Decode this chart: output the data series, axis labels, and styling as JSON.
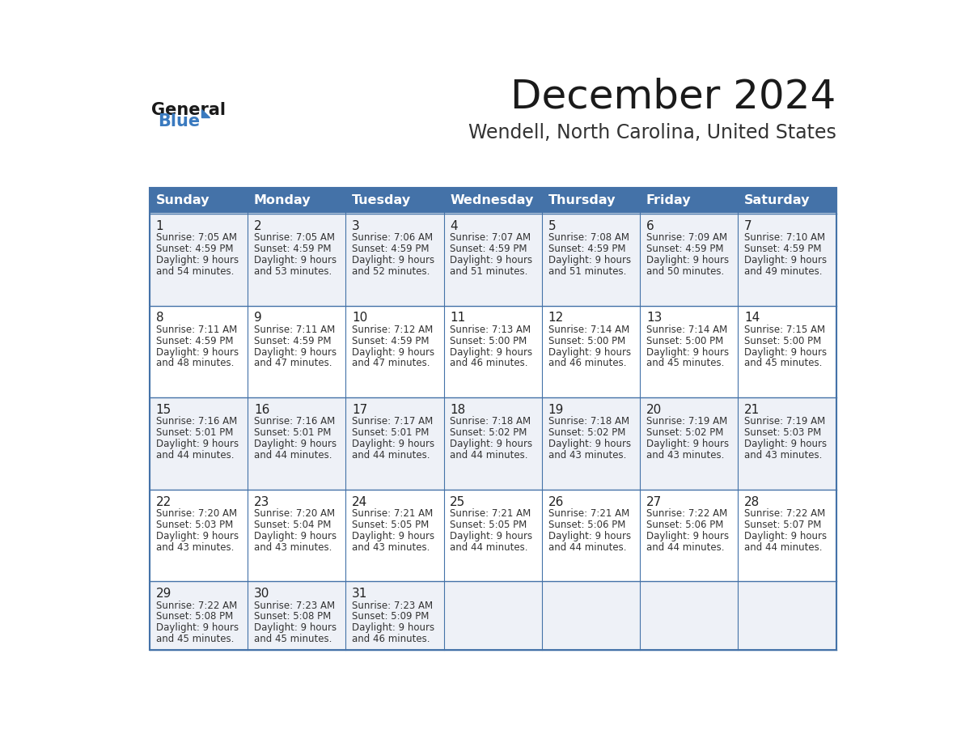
{
  "title": "December 2024",
  "subtitle": "Wendell, North Carolina, United States",
  "days_of_week": [
    "Sunday",
    "Monday",
    "Tuesday",
    "Wednesday",
    "Thursday",
    "Friday",
    "Saturday"
  ],
  "header_bg": "#4472a8",
  "header_text": "#ffffff",
  "cell_bg_odd": "#eef1f7",
  "cell_bg_even": "#ffffff",
  "cell_border": "#4472a8",
  "title_color": "#1a1a1a",
  "subtitle_color": "#333333",
  "day_num_color": "#222222",
  "cell_text_color": "#333333",
  "logo_general_color": "#1a1a1a",
  "logo_blue_color": "#3a7abf",
  "logo_triangle_color": "#3a7abf",
  "calendar_data": [
    [
      {
        "day": "1",
        "sunrise": "7:05 AM",
        "sunset": "4:59 PM",
        "daylight_a": "9 hours",
        "daylight_b": "and 54 minutes."
      },
      {
        "day": "2",
        "sunrise": "7:05 AM",
        "sunset": "4:59 PM",
        "daylight_a": "9 hours",
        "daylight_b": "and 53 minutes."
      },
      {
        "day": "3",
        "sunrise": "7:06 AM",
        "sunset": "4:59 PM",
        "daylight_a": "9 hours",
        "daylight_b": "and 52 minutes."
      },
      {
        "day": "4",
        "sunrise": "7:07 AM",
        "sunset": "4:59 PM",
        "daylight_a": "9 hours",
        "daylight_b": "and 51 minutes."
      },
      {
        "day": "5",
        "sunrise": "7:08 AM",
        "sunset": "4:59 PM",
        "daylight_a": "9 hours",
        "daylight_b": "and 51 minutes."
      },
      {
        "day": "6",
        "sunrise": "7:09 AM",
        "sunset": "4:59 PM",
        "daylight_a": "9 hours",
        "daylight_b": "and 50 minutes."
      },
      {
        "day": "7",
        "sunrise": "7:10 AM",
        "sunset": "4:59 PM",
        "daylight_a": "9 hours",
        "daylight_b": "and 49 minutes."
      }
    ],
    [
      {
        "day": "8",
        "sunrise": "7:11 AM",
        "sunset": "4:59 PM",
        "daylight_a": "9 hours",
        "daylight_b": "and 48 minutes."
      },
      {
        "day": "9",
        "sunrise": "7:11 AM",
        "sunset": "4:59 PM",
        "daylight_a": "9 hours",
        "daylight_b": "and 47 minutes."
      },
      {
        "day": "10",
        "sunrise": "7:12 AM",
        "sunset": "4:59 PM",
        "daylight_a": "9 hours",
        "daylight_b": "and 47 minutes."
      },
      {
        "day": "11",
        "sunrise": "7:13 AM",
        "sunset": "5:00 PM",
        "daylight_a": "9 hours",
        "daylight_b": "and 46 minutes."
      },
      {
        "day": "12",
        "sunrise": "7:14 AM",
        "sunset": "5:00 PM",
        "daylight_a": "9 hours",
        "daylight_b": "and 46 minutes."
      },
      {
        "day": "13",
        "sunrise": "7:14 AM",
        "sunset": "5:00 PM",
        "daylight_a": "9 hours",
        "daylight_b": "and 45 minutes."
      },
      {
        "day": "14",
        "sunrise": "7:15 AM",
        "sunset": "5:00 PM",
        "daylight_a": "9 hours",
        "daylight_b": "and 45 minutes."
      }
    ],
    [
      {
        "day": "15",
        "sunrise": "7:16 AM",
        "sunset": "5:01 PM",
        "daylight_a": "9 hours",
        "daylight_b": "and 44 minutes."
      },
      {
        "day": "16",
        "sunrise": "7:16 AM",
        "sunset": "5:01 PM",
        "daylight_a": "9 hours",
        "daylight_b": "and 44 minutes."
      },
      {
        "day": "17",
        "sunrise": "7:17 AM",
        "sunset": "5:01 PM",
        "daylight_a": "9 hours",
        "daylight_b": "and 44 minutes."
      },
      {
        "day": "18",
        "sunrise": "7:18 AM",
        "sunset": "5:02 PM",
        "daylight_a": "9 hours",
        "daylight_b": "and 44 minutes."
      },
      {
        "day": "19",
        "sunrise": "7:18 AM",
        "sunset": "5:02 PM",
        "daylight_a": "9 hours",
        "daylight_b": "and 43 minutes."
      },
      {
        "day": "20",
        "sunrise": "7:19 AM",
        "sunset": "5:02 PM",
        "daylight_a": "9 hours",
        "daylight_b": "and 43 minutes."
      },
      {
        "day": "21",
        "sunrise": "7:19 AM",
        "sunset": "5:03 PM",
        "daylight_a": "9 hours",
        "daylight_b": "and 43 minutes."
      }
    ],
    [
      {
        "day": "22",
        "sunrise": "7:20 AM",
        "sunset": "5:03 PM",
        "daylight_a": "9 hours",
        "daylight_b": "and 43 minutes."
      },
      {
        "day": "23",
        "sunrise": "7:20 AM",
        "sunset": "5:04 PM",
        "daylight_a": "9 hours",
        "daylight_b": "and 43 minutes."
      },
      {
        "day": "24",
        "sunrise": "7:21 AM",
        "sunset": "5:05 PM",
        "daylight_a": "9 hours",
        "daylight_b": "and 43 minutes."
      },
      {
        "day": "25",
        "sunrise": "7:21 AM",
        "sunset": "5:05 PM",
        "daylight_a": "9 hours",
        "daylight_b": "and 44 minutes."
      },
      {
        "day": "26",
        "sunrise": "7:21 AM",
        "sunset": "5:06 PM",
        "daylight_a": "9 hours",
        "daylight_b": "and 44 minutes."
      },
      {
        "day": "27",
        "sunrise": "7:22 AM",
        "sunset": "5:06 PM",
        "daylight_a": "9 hours",
        "daylight_b": "and 44 minutes."
      },
      {
        "day": "28",
        "sunrise": "7:22 AM",
        "sunset": "5:07 PM",
        "daylight_a": "9 hours",
        "daylight_b": "and 44 minutes."
      }
    ],
    [
      {
        "day": "29",
        "sunrise": "7:22 AM",
        "sunset": "5:08 PM",
        "daylight_a": "9 hours",
        "daylight_b": "and 45 minutes."
      },
      {
        "day": "30",
        "sunrise": "7:23 AM",
        "sunset": "5:08 PM",
        "daylight_a": "9 hours",
        "daylight_b": "and 45 minutes."
      },
      {
        "day": "31",
        "sunrise": "7:23 AM",
        "sunset": "5:09 PM",
        "daylight_a": "9 hours",
        "daylight_b": "and 46 minutes."
      },
      null,
      null,
      null,
      null
    ]
  ]
}
